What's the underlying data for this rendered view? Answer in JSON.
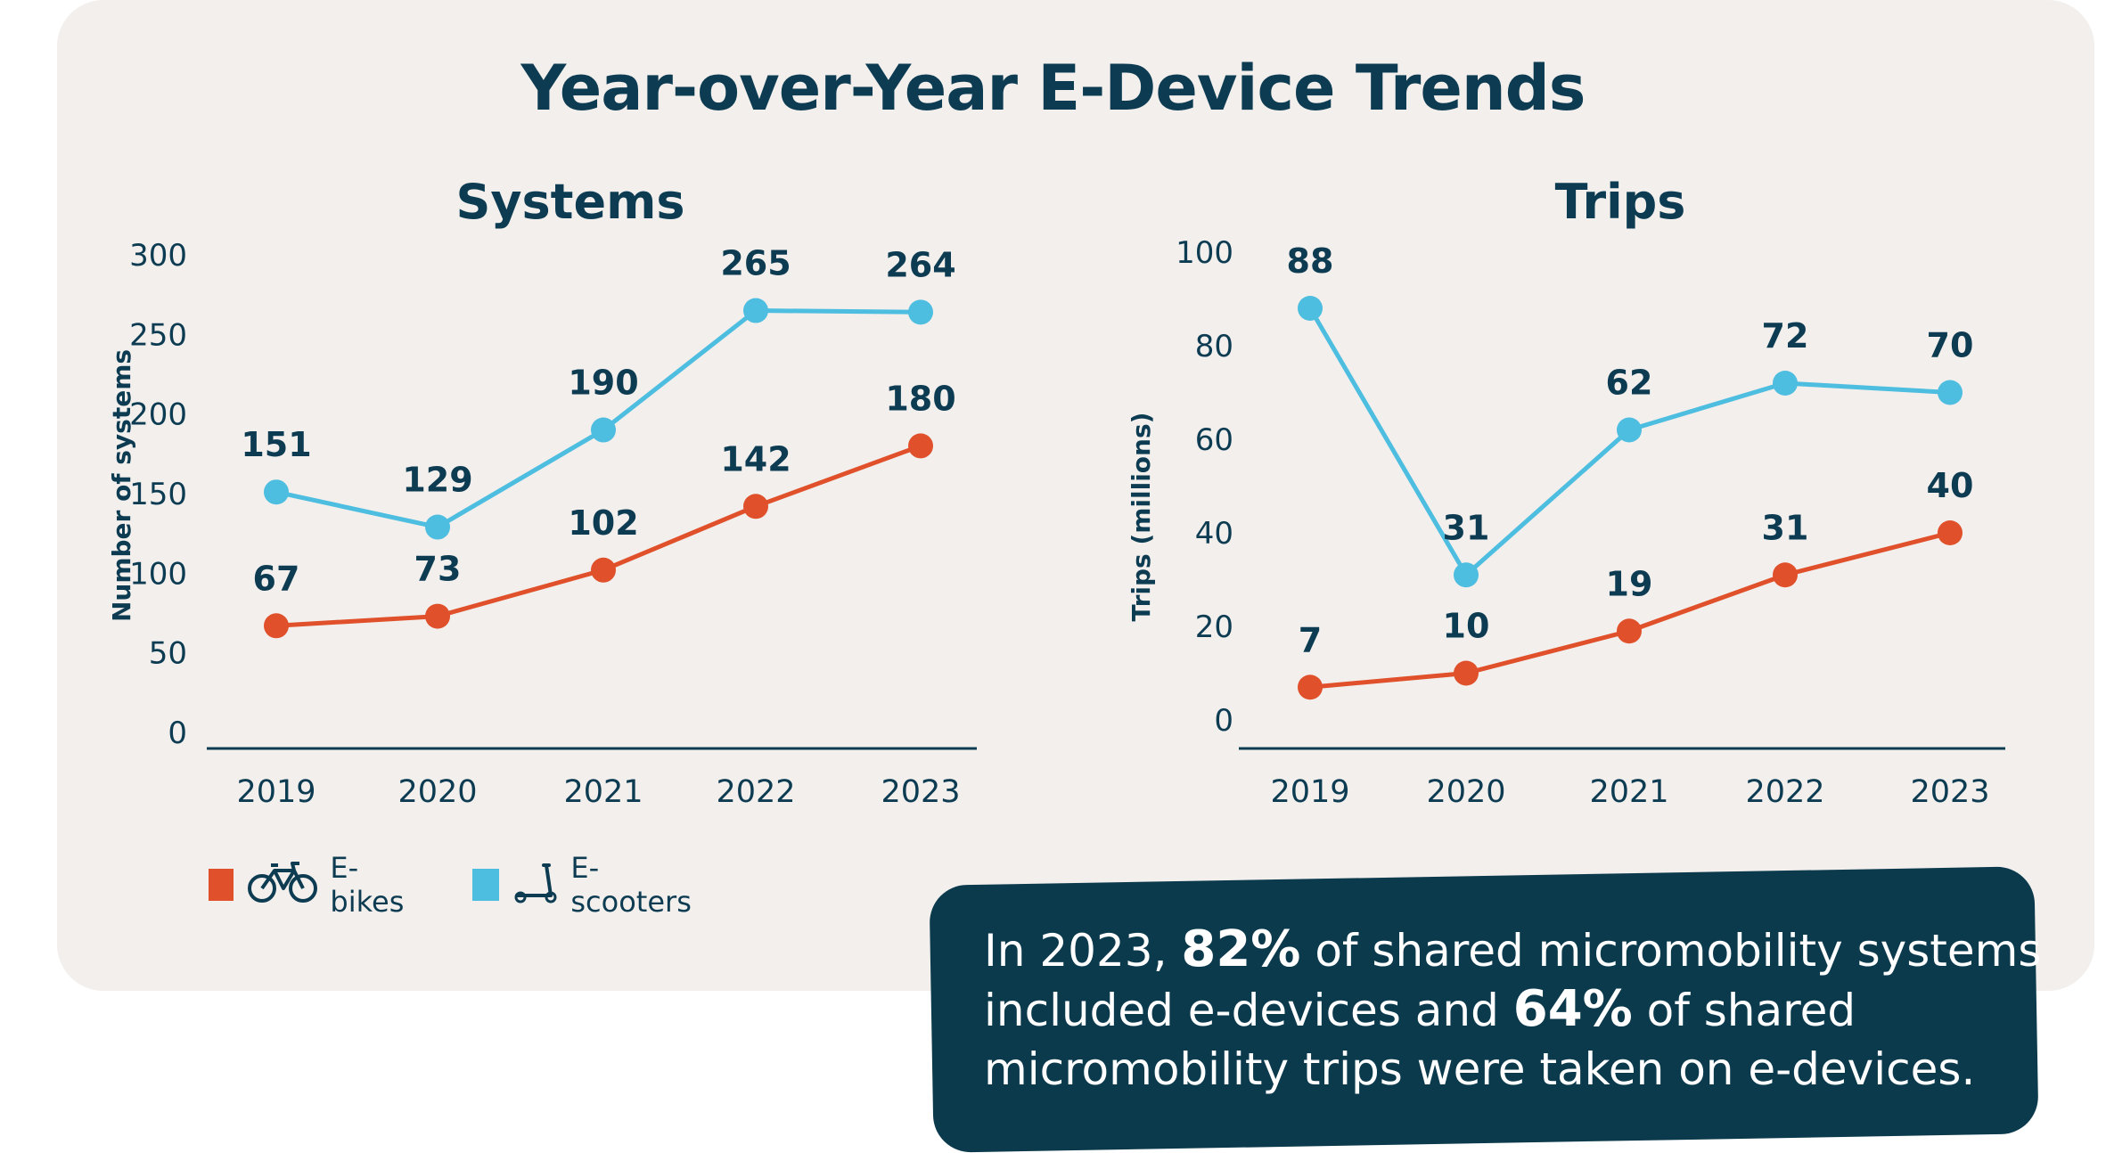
{
  "title": "Year-over-Year E-Device Trends",
  "colors": {
    "background": "#f2efed",
    "title": "#0d3c52",
    "ebikes": "#e0502a",
    "escooters": "#4dbde0",
    "callout_bg": "#0c3a4d"
  },
  "legend": {
    "ebikes_label": "E-bikes",
    "ebikes_icon": "bicycle-icon",
    "escooters_label": "E-scooters",
    "escooters_icon": "scooter-icon"
  },
  "callout": {
    "line1_pre": "In 2023, ",
    "line1_bold": "82%",
    "line1_post": " of shared micromobility systems",
    "line2_pre": "included e-devices and ",
    "line2_bold": "64%",
    "line2_post": " of shared",
    "line3": "micromobility trips were taken on e-devices."
  },
  "chart_data": [
    {
      "type": "line",
      "title": "Systems",
      "ylabel": "Number of systems",
      "xlabel": "",
      "categories": [
        "2019",
        "2020",
        "2021",
        "2022",
        "2023"
      ],
      "ylim": [
        0,
        300
      ],
      "yticks": [
        0,
        50,
        100,
        150,
        200,
        250,
        300
      ],
      "grid": false,
      "series": [
        {
          "name": "E-bikes",
          "color": "#e0502a",
          "values": [
            67,
            73,
            102,
            142,
            180
          ]
        },
        {
          "name": "E-scooters",
          "color": "#4dbde0",
          "values": [
            151,
            129,
            190,
            265,
            264
          ]
        }
      ]
    },
    {
      "type": "line",
      "title": "Trips",
      "ylabel": "Trips (millions)",
      "xlabel": "",
      "categories": [
        "2019",
        "2020",
        "2021",
        "2022",
        "2023"
      ],
      "ylim": [
        0,
        100
      ],
      "yticks": [
        0,
        20,
        40,
        60,
        80,
        100
      ],
      "grid": false,
      "series": [
        {
          "name": "E-bikes",
          "color": "#e0502a",
          "values": [
            7,
            10,
            19,
            31,
            40
          ]
        },
        {
          "name": "E-scooters",
          "color": "#4dbde0",
          "values": [
            88,
            31,
            62,
            72,
            70
          ]
        }
      ]
    }
  ]
}
